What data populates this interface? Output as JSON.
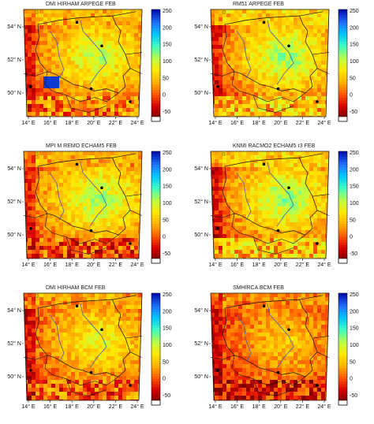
{
  "colorbar": {
    "ticks": [
      "250",
      "200",
      "150",
      "100",
      "50",
      "0",
      "-50"
    ],
    "min": -50,
    "max": 250,
    "colors": [
      "#7a0000",
      "#d90000",
      "#ff5a00",
      "#ffb200",
      "#ffe800",
      "#b8ff48",
      "#40ffc0",
      "#00c8ff",
      "#2070ff",
      "#0010b0"
    ]
  },
  "axes": {
    "lon_ticks": [
      "14° E",
      "16° E",
      "18° E",
      "20° E",
      "22° E",
      "24° E"
    ],
    "lat_ticks": [
      "54° N",
      "52° N",
      "50° N"
    ]
  },
  "panels": [
    {
      "title": "DMI HIRHAM ARPEGE  FEB",
      "palette": "warm-blue"
    },
    {
      "title": "RM51  ARPEGE  FEB",
      "palette": "cool"
    },
    {
      "title": "MPI M REMO ECHAM5  FEB",
      "palette": "mixed"
    },
    {
      "title": "KNMI RACMO2 ECHAM5 r3  FEB",
      "palette": "cool"
    },
    {
      "title": "DMI HIRHAM BCM  FEB",
      "palette": "warm"
    },
    {
      "title": "SMHIRCA BCM  FEB",
      "palette": "hot"
    }
  ]
}
